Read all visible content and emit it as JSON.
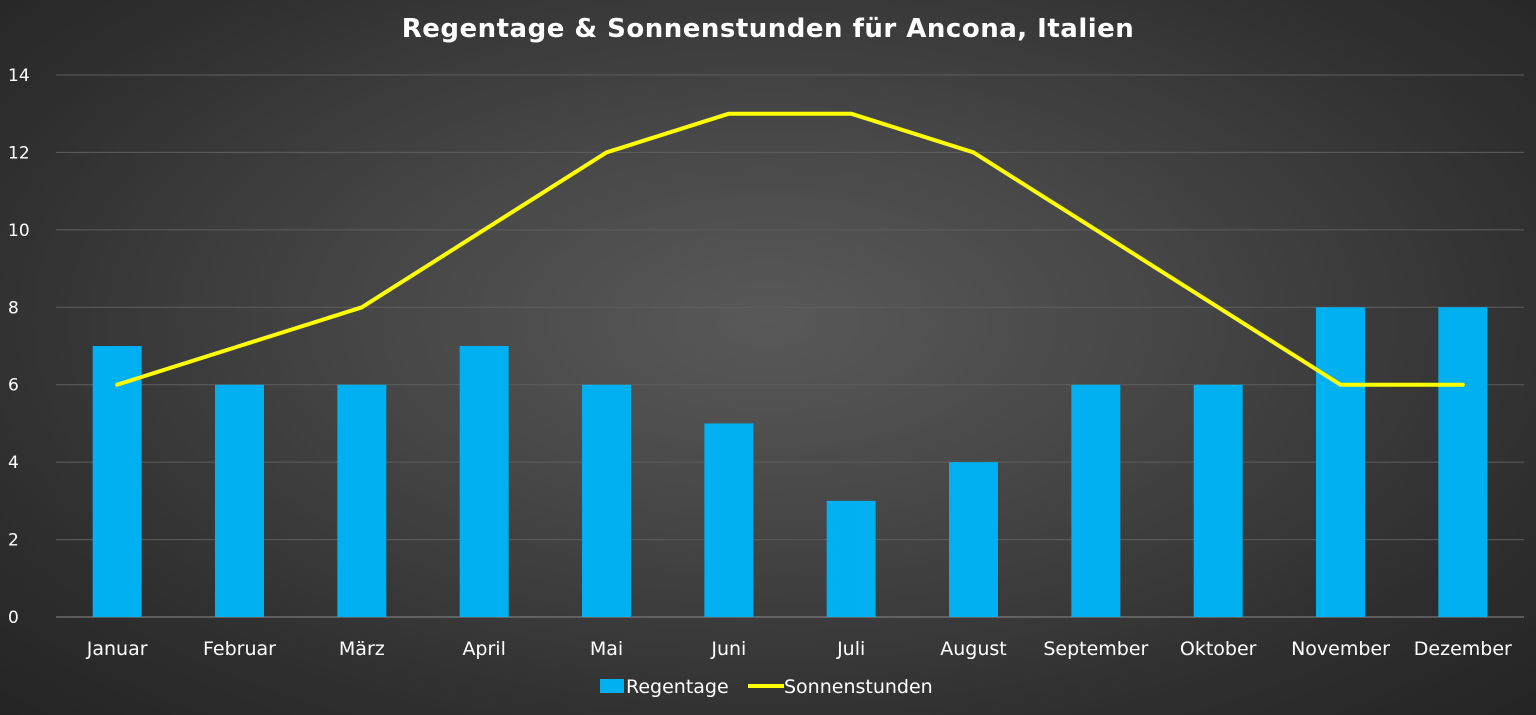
{
  "chart_data": {
    "type": "bar",
    "title": "Regentage & Sonnenstunden für Ancona, Italien",
    "categories": [
      "Januar",
      "Februar",
      "März",
      "April",
      "Mai",
      "Juni",
      "Juli",
      "August",
      "September",
      "Oktober",
      "November",
      "Dezember"
    ],
    "series": [
      {
        "name": "Regentage",
        "type": "bar",
        "color": "#00b0f0",
        "values": [
          7,
          6,
          6,
          7,
          6,
          5,
          3,
          4,
          6,
          6,
          8,
          8
        ]
      },
      {
        "name": "Sonnenstunden",
        "type": "line",
        "color": "#ffff00",
        "values": [
          6,
          7,
          8,
          10,
          12,
          13,
          13,
          12,
          10,
          8,
          6,
          6
        ]
      }
    ],
    "ylim": [
      0,
      14
    ],
    "yticks": [
      0,
      2,
      4,
      6,
      8,
      10,
      12,
      14
    ],
    "grid": true,
    "legend": "bottom",
    "xlabel": "",
    "ylabel": ""
  }
}
